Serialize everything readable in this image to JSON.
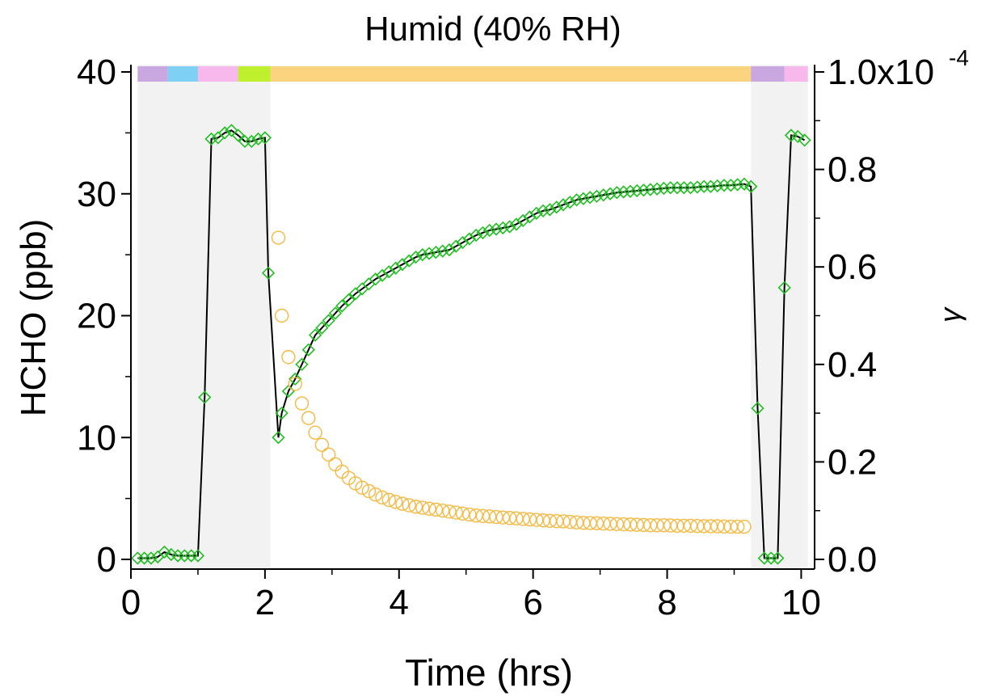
{
  "chart_data": {
    "type": "line",
    "title": "Humid (40% RH)",
    "xlabel": "Time (hrs)",
    "ylabel": "HCHO (ppb)",
    "y2label": "γ",
    "xlim": [
      0,
      10.2
    ],
    "ylim": [
      0,
      40
    ],
    "y2lim": [
      0,
      0.0001
    ],
    "xticks": [
      "0",
      "2",
      "4",
      "6",
      "8",
      "10"
    ],
    "yticks": [
      "0",
      "10",
      "20",
      "30",
      "40"
    ],
    "y2ticks": [
      "0.0",
      "0.2",
      "0.4",
      "0.6",
      "0.8",
      "1.0x10"
    ],
    "y2_exponent": "-4",
    "grid": false,
    "shaded_regions": [
      [
        0.1,
        2.08
      ],
      [
        9.25,
        10.1
      ]
    ],
    "phase_bar": [
      {
        "start": 0.1,
        "end": 0.55,
        "color": "#c9a7e0"
      },
      {
        "start": 0.55,
        "end": 1.0,
        "color": "#7fd0f5"
      },
      {
        "start": 1.0,
        "end": 1.6,
        "color": "#f8b8ec"
      },
      {
        "start": 1.6,
        "end": 2.08,
        "color": "#bff02e"
      },
      {
        "start": 2.08,
        "end": 9.25,
        "color": "#fcd37f"
      },
      {
        "start": 9.25,
        "end": 9.75,
        "color": "#c9a7e0"
      },
      {
        "start": 9.75,
        "end": 10.1,
        "color": "#f8b8ec"
      }
    ],
    "series": [
      {
        "axis": "left",
        "color": "#1fbf1f",
        "line_color": "#000000",
        "marker": "diamond",
        "x": [
          0.1,
          0.2,
          0.3,
          0.4,
          0.5,
          0.6,
          0.7,
          0.8,
          0.9,
          1.0,
          1.1,
          1.2,
          1.3,
          1.4,
          1.5,
          1.6,
          1.7,
          1.8,
          1.9,
          2.0,
          2.05,
          2.2,
          2.25,
          2.35,
          2.45,
          2.55,
          2.65,
          2.75,
          2.85,
          2.95,
          3.05,
          3.15,
          3.25,
          3.35,
          3.45,
          3.55,
          3.65,
          3.75,
          3.85,
          3.95,
          4.05,
          4.15,
          4.25,
          4.35,
          4.45,
          4.55,
          4.65,
          4.75,
          4.85,
          4.95,
          5.05,
          5.15,
          5.25,
          5.35,
          5.45,
          5.55,
          5.65,
          5.75,
          5.85,
          5.95,
          6.05,
          6.15,
          6.25,
          6.35,
          6.45,
          6.55,
          6.65,
          6.75,
          6.85,
          6.95,
          7.05,
          7.15,
          7.25,
          7.35,
          7.45,
          7.55,
          7.65,
          7.75,
          7.85,
          7.95,
          8.05,
          8.15,
          8.25,
          8.35,
          8.45,
          8.55,
          8.65,
          8.75,
          8.85,
          8.95,
          9.05,
          9.15,
          9.25,
          9.35,
          9.45,
          9.55,
          9.65,
          9.75,
          9.85,
          9.95,
          10.05
        ],
        "y": [
          0.1,
          0.1,
          0.1,
          0.2,
          0.6,
          0.4,
          0.3,
          0.3,
          0.3,
          0.3,
          13.3,
          34.5,
          34.6,
          35.0,
          35.2,
          34.8,
          34.3,
          34.3,
          34.5,
          34.6,
          23.5,
          10.0,
          12.0,
          13.8,
          14.8,
          16.0,
          17.2,
          18.4,
          19.0,
          19.6,
          20.2,
          20.8,
          21.3,
          21.8,
          22.2,
          22.6,
          23.0,
          23.3,
          23.6,
          23.9,
          24.2,
          24.5,
          24.8,
          25.0,
          25.1,
          25.2,
          25.3,
          25.4,
          25.7,
          26.0,
          26.3,
          26.6,
          26.8,
          27.0,
          27.1,
          27.2,
          27.3,
          27.5,
          27.8,
          28.1,
          28.4,
          28.6,
          28.7,
          28.9,
          29.1,
          29.3,
          29.5,
          29.6,
          29.7,
          29.8,
          29.9,
          30.0,
          30.1,
          30.15,
          30.2,
          30.25,
          30.3,
          30.35,
          30.4,
          30.45,
          30.5,
          30.5,
          30.5,
          30.5,
          30.55,
          30.6,
          30.6,
          30.65,
          30.7,
          30.7,
          30.75,
          30.8,
          30.6,
          12.4,
          0.1,
          0.1,
          0.1,
          22.3,
          34.8,
          34.7,
          34.4
        ]
      },
      {
        "axis": "right",
        "color": "#f5b942",
        "marker": "circle",
        "x": [
          2.2,
          2.25,
          2.35,
          2.45,
          2.55,
          2.65,
          2.75,
          2.85,
          2.95,
          3.05,
          3.15,
          3.25,
          3.35,
          3.45,
          3.55,
          3.65,
          3.75,
          3.85,
          3.95,
          4.05,
          4.15,
          4.25,
          4.35,
          4.45,
          4.55,
          4.65,
          4.75,
          4.85,
          4.95,
          5.05,
          5.15,
          5.25,
          5.35,
          5.45,
          5.55,
          5.65,
          5.75,
          5.85,
          5.95,
          6.05,
          6.15,
          6.25,
          6.35,
          6.45,
          6.55,
          6.65,
          6.75,
          6.85,
          6.95,
          7.05,
          7.15,
          7.25,
          7.35,
          7.45,
          7.55,
          7.65,
          7.75,
          7.85,
          7.95,
          8.05,
          8.15,
          8.25,
          8.35,
          8.45,
          8.55,
          8.65,
          8.75,
          8.85,
          8.95,
          9.05,
          9.15
        ],
        "y": [
          6.6e-05,
          5e-05,
          4.15e-05,
          3.6e-05,
          3.2e-05,
          2.9e-05,
          2.6e-05,
          2.35e-05,
          2.15e-05,
          1.95e-05,
          1.8e-05,
          1.67e-05,
          1.56e-05,
          1.47e-05,
          1.4e-05,
          1.33e-05,
          1.27e-05,
          1.22e-05,
          1.18e-05,
          1.14e-05,
          1.11e-05,
          1.08e-05,
          1.06e-05,
          1.04e-05,
          1.02e-05,
          1e-05,
          9.8e-06,
          9.6e-06,
          9.4e-06,
          9.2e-06,
          9e-06,
          8.9e-06,
          8.8e-06,
          8.7e-06,
          8.6e-06,
          8.5e-06,
          8.4e-06,
          8.3e-06,
          8.2e-06,
          8.1e-06,
          8e-06,
          7.9e-06,
          7.85e-06,
          7.8e-06,
          7.7e-06,
          7.6e-06,
          7.5e-06,
          7.45e-06,
          7.4e-06,
          7.35e-06,
          7.3e-06,
          7.25e-06,
          7.2e-06,
          7.15e-06,
          7.1e-06,
          7.05e-06,
          7e-06,
          7e-06,
          7e-06,
          6.95e-06,
          6.9e-06,
          6.9e-06,
          6.9e-06,
          6.85e-06,
          6.8e-06,
          6.8e-06,
          6.8e-06,
          6.75e-06,
          6.7e-06,
          6.7e-06,
          6.7e-06
        ]
      }
    ]
  }
}
